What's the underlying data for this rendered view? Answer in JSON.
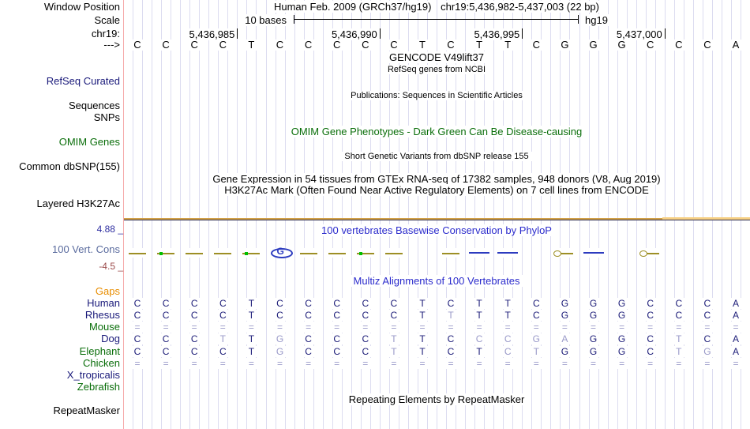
{
  "header": {
    "window_position_label": "Window Position",
    "assembly_title": "Human Feb. 2009 (GRCh37/hg19)",
    "range_title": "chr19:5,436,982-5,437,003 (22 bp)",
    "scale_label": "Scale",
    "scale_value": "10 bases",
    "genome": "hg19",
    "chrom_label": "chr19:",
    "direction_arrow": "--->",
    "ruler_ticks": [
      {
        "label": "5,436,985",
        "base": 4
      },
      {
        "label": "5,436,990",
        "base": 9
      },
      {
        "label": "5,436,995",
        "base": 14
      },
      {
        "label": "5,437,000",
        "base": 19
      }
    ]
  },
  "sequence": [
    "C",
    "C",
    "C",
    "C",
    "T",
    "C",
    "C",
    "C",
    "C",
    "C",
    "T",
    "C",
    "T",
    "T",
    "C",
    "G",
    "G",
    "G",
    "C",
    "C",
    "C",
    "A"
  ],
  "tracks": {
    "gencode_title": "GENCODE V49lift37",
    "refseq_subtitle": "RefSeq genes from NCBI",
    "refseq_label": "RefSeq Curated",
    "publications_text": "Publications: Sequences in Scientific Articles",
    "sequences_label": "Sequences",
    "snps_label": "SNPs",
    "omim_center_text": "OMIM Gene Phenotypes - Dark Green Can Be Disease-causing",
    "omim_label": "OMIM Genes",
    "dbsnp_center_text": "Short Genetic Variants from dbSNP release 155",
    "dbsnp_label": "Common dbSNP(155)",
    "gtex_text": "Gene Expression in 54 tissues from GTEx RNA-seq of 17382 samples, 948 donors (V8, Aug 2019)",
    "h3k27ac_text": "H3K27Ac Mark (Often Found Near Active Regulatory Elements) on 7 cell lines from ENCODE",
    "h3k27ac_label": "Layered H3K27Ac",
    "phylop_title": "100 vertebrates Basewise Conservation by PhyloP",
    "phylop_label": "100 Vert. Cons",
    "phylop_max": "4.88 _",
    "phylop_min": "-4.5 _",
    "multiz_title": "Multiz Alignments of 100 Vertebrates",
    "repeat_center_text": "Repeating Elements by RepeatMasker",
    "repeat_label": "RepeatMasker"
  },
  "conservation_marks": [
    {
      "base": 1,
      "kind": "olive"
    },
    {
      "base": 2,
      "kind": "olive_green"
    },
    {
      "base": 3,
      "kind": "olive"
    },
    {
      "base": 4,
      "kind": "olive"
    },
    {
      "base": 5,
      "kind": "olive_green"
    },
    {
      "base": 6,
      "kind": "blue_g"
    },
    {
      "base": 7,
      "kind": "olive"
    },
    {
      "base": 8,
      "kind": "olive"
    },
    {
      "base": 9,
      "kind": "olive_green"
    },
    {
      "base": 10,
      "kind": "olive"
    },
    {
      "base": 12,
      "kind": "olive"
    },
    {
      "base": 13,
      "kind": "blue"
    },
    {
      "base": 14,
      "kind": "blue"
    },
    {
      "base": 16,
      "kind": "olive_loop"
    },
    {
      "base": 17,
      "kind": "blue"
    },
    {
      "base": 19,
      "kind": "olive_loop"
    }
  ],
  "alignment": {
    "species": [
      {
        "name": "Gaps",
        "color": "orange",
        "cells": [
          "",
          "",
          "",
          "",
          "",
          "",
          "",
          "",
          "",
          "",
          "",
          "",
          "",
          "",
          "",
          "",
          "",
          "",
          "",
          "",
          "",
          ""
        ],
        "light": [
          0,
          0,
          0,
          0,
          0,
          0,
          0,
          0,
          0,
          0,
          0,
          0,
          0,
          0,
          0,
          0,
          0,
          0,
          0,
          0,
          0,
          0
        ]
      },
      {
        "name": "Human",
        "color": "navy",
        "cells": [
          "C",
          "C",
          "C",
          "C",
          "T",
          "C",
          "C",
          "C",
          "C",
          "C",
          "T",
          "C",
          "T",
          "T",
          "C",
          "G",
          "G",
          "G",
          "C",
          "C",
          "C",
          "A"
        ],
        "light": [
          0,
          0,
          0,
          0,
          0,
          0,
          0,
          0,
          0,
          0,
          0,
          0,
          0,
          0,
          0,
          0,
          0,
          0,
          0,
          0,
          0,
          0
        ]
      },
      {
        "name": "Rhesus",
        "color": "navy",
        "cells": [
          "C",
          "C",
          "C",
          "C",
          "T",
          "C",
          "C",
          "C",
          "C",
          "C",
          "T",
          "T",
          "T",
          "T",
          "C",
          "G",
          "G",
          "G",
          "C",
          "C",
          "C",
          "A"
        ],
        "light": [
          0,
          0,
          0,
          0,
          0,
          0,
          0,
          0,
          0,
          0,
          0,
          1,
          0,
          0,
          0,
          0,
          0,
          0,
          0,
          0,
          0,
          0
        ]
      },
      {
        "name": "Mouse",
        "color": "green",
        "cells": [
          "=",
          "=",
          "=",
          "=",
          "=",
          "=",
          "=",
          "=",
          "=",
          "=",
          "=",
          "=",
          "=",
          "=",
          "=",
          "=",
          "=",
          "=",
          "=",
          "=",
          "=",
          "="
        ],
        "light": [
          1,
          1,
          1,
          1,
          1,
          1,
          1,
          1,
          1,
          1,
          1,
          1,
          1,
          1,
          1,
          1,
          1,
          1,
          1,
          1,
          1,
          1
        ]
      },
      {
        "name": "Dog",
        "color": "navy",
        "cells": [
          "C",
          "C",
          "C",
          "T",
          "T",
          "G",
          "C",
          "C",
          "C",
          "T",
          "T",
          "C",
          "C",
          "C",
          "G",
          "A",
          "G",
          "G",
          "C",
          "T",
          "C",
          "A"
        ],
        "light": [
          0,
          0,
          0,
          1,
          0,
          1,
          0,
          0,
          0,
          1,
          0,
          0,
          1,
          1,
          1,
          1,
          0,
          0,
          0,
          1,
          0,
          0
        ]
      },
      {
        "name": "Elephant",
        "color": "green",
        "cells": [
          "C",
          "C",
          "C",
          "C",
          "T",
          "G",
          "C",
          "C",
          "C",
          "T",
          "T",
          "C",
          "T",
          "C",
          "T",
          "G",
          "G",
          "G",
          "C",
          "T",
          "G",
          "A"
        ],
        "light": [
          0,
          0,
          0,
          0,
          0,
          1,
          0,
          0,
          0,
          1,
          0,
          0,
          0,
          1,
          1,
          0,
          0,
          0,
          0,
          1,
          1,
          0
        ]
      },
      {
        "name": "Chicken",
        "color": "green",
        "cells": [
          "=",
          "=",
          "=",
          "=",
          "=",
          "=",
          "=",
          "=",
          "=",
          "=",
          "=",
          "=",
          "=",
          "=",
          "=",
          "=",
          "=",
          "=",
          "=",
          "=",
          "=",
          "="
        ],
        "light": [
          1,
          1,
          1,
          1,
          1,
          1,
          1,
          1,
          1,
          1,
          1,
          1,
          1,
          1,
          1,
          1,
          1,
          1,
          1,
          1,
          1,
          1
        ]
      },
      {
        "name": "X_tropicalis",
        "color": "navy",
        "cells": [
          "",
          "",
          "",
          "",
          "",
          "",
          "",
          "",
          "",
          "",
          "",
          "",
          "",
          "",
          "",
          "",
          "",
          "",
          "",
          "",
          "",
          ""
        ],
        "light": [
          0,
          0,
          0,
          0,
          0,
          0,
          0,
          0,
          0,
          0,
          0,
          0,
          0,
          0,
          0,
          0,
          0,
          0,
          0,
          0,
          0,
          0
        ]
      },
      {
        "name": "Zebrafish",
        "color": "green",
        "cells": [
          "",
          "",
          "",
          "",
          "",
          "",
          "",
          "",
          "",
          "",
          "",
          "",
          "",
          "",
          "",
          "",
          "",
          "",
          "",
          "",
          "",
          ""
        ],
        "light": [
          0,
          0,
          0,
          0,
          0,
          0,
          0,
          0,
          0,
          0,
          0,
          0,
          0,
          0,
          0,
          0,
          0,
          0,
          0,
          0,
          0,
          0
        ]
      }
    ]
  },
  "colors": {
    "navy": "#19197a",
    "green": "#0a6e0a",
    "orange": "#e88d00",
    "blue_title": "#2b2bcc",
    "slate_label": "#5a6b9e",
    "phylop_max": "#2e2ea0",
    "phylop_min": "#9b4a4a",
    "dark_letter": "#1c1c78",
    "light_letter": "#9a9ac9",
    "grid": "#dcdcf0",
    "separator": "#f5a9a9",
    "cons_olive": "#9d8f25",
    "cons_green": "#00c000",
    "cons_blue": "#2c3bbf",
    "h3k_orange": "#d2a148",
    "h3k_orange_light": "#f6cf83",
    "h3k_dark": "#333355"
  }
}
